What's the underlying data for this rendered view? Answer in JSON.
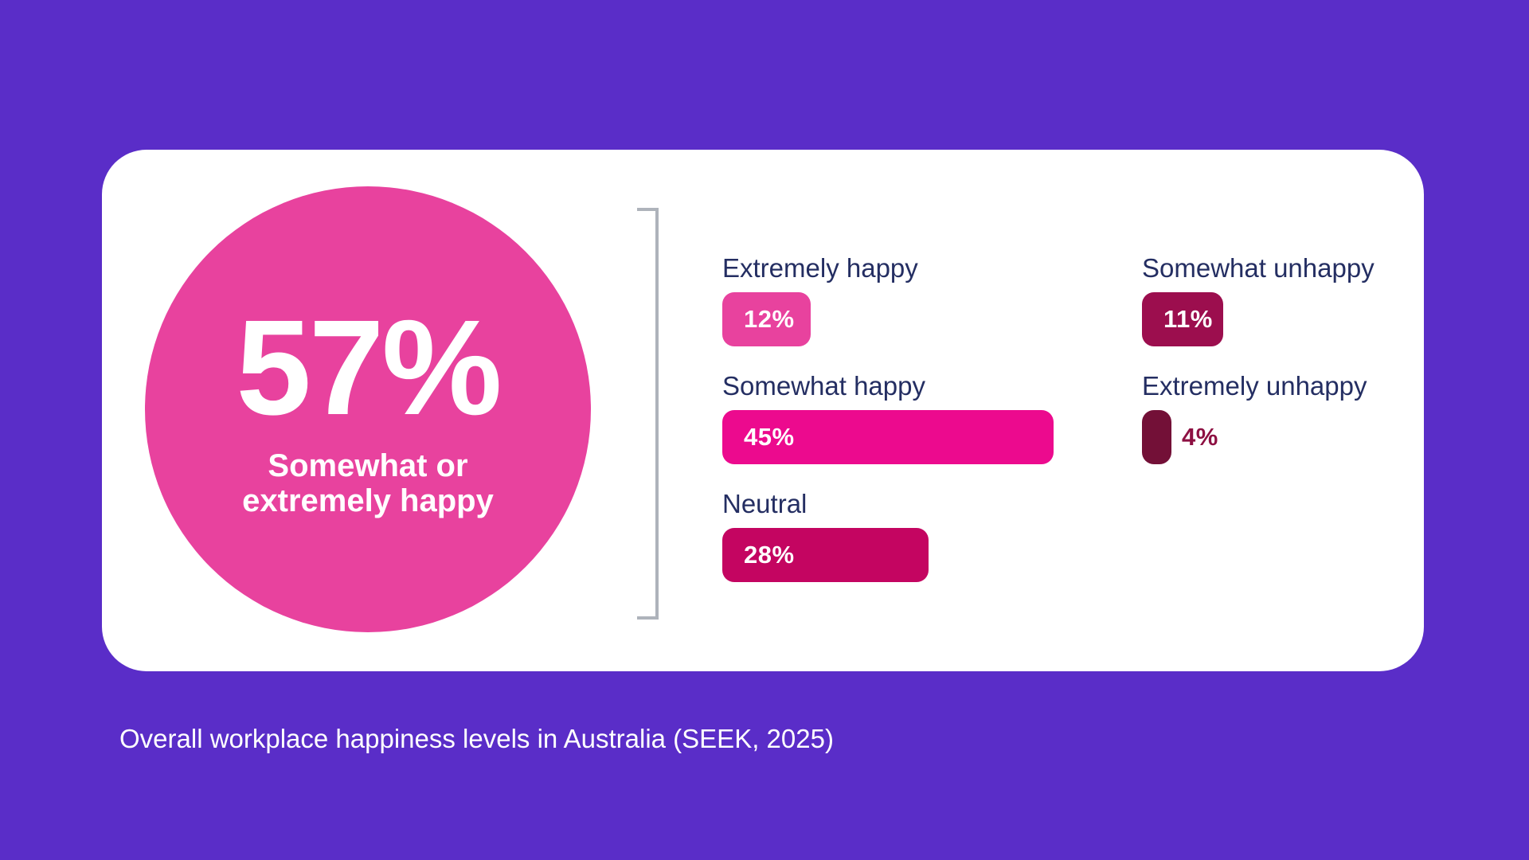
{
  "colors": {
    "background": "#5A2DC8",
    "card_bg": "#FFFFFF",
    "circle_fill": "#E8429E",
    "label_text": "#242E62",
    "bar_value_text": "#FFFFFF",
    "outside_value_text": "#8D1042",
    "bracket": "#AEB3BB",
    "caption_text": "#FFFFFF"
  },
  "highlight": {
    "value": "57%",
    "label_line1": "Somewhat or",
    "label_line2": "extremely happy"
  },
  "columns": {
    "left": [
      {
        "label": "Extremely happy",
        "value_label": "12%",
        "pct": 12,
        "color": "#E8429E"
      },
      {
        "label": "Somewhat happy",
        "value_label": "45%",
        "pct": 45,
        "color": "#EC0A8E"
      },
      {
        "label": "Neutral",
        "value_label": "28%",
        "pct": 28,
        "color": "#C40561"
      }
    ],
    "right": [
      {
        "label": "Somewhat unhappy",
        "value_label": "11%",
        "pct": 11,
        "color": "#9C0E4E"
      },
      {
        "label": "Extremely unhappy",
        "value_label": "4%",
        "pct": 4,
        "color": "#731037"
      }
    ]
  },
  "caption": "Overall workplace happiness levels in Australia (SEEK, 2025)",
  "chart_data": {
    "type": "bar",
    "orientation": "horizontal",
    "categories": [
      "Extremely happy",
      "Somewhat happy",
      "Neutral",
      "Somewhat unhappy",
      "Extremely unhappy"
    ],
    "values": [
      12,
      45,
      28,
      11,
      4
    ],
    "units": "percent",
    "bar_colors": [
      "#E8429E",
      "#EC0A8E",
      "#C40561",
      "#9C0E4E",
      "#731037"
    ],
    "value_labels_shown": true,
    "xlim": [
      0,
      50
    ],
    "grid": false,
    "legend": false,
    "title": "Overall workplace happiness levels in Australia (SEEK, 2025)",
    "annotations": [
      {
        "text": "57% Somewhat or extremely happy",
        "note": "large highlight circle summing Extremely happy (12%) and Somewhat happy (45%)"
      }
    ]
  }
}
